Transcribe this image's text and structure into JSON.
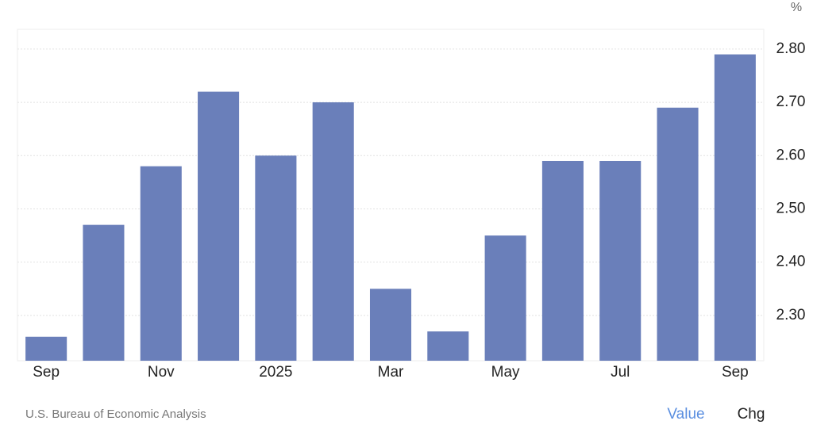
{
  "chart_data": {
    "type": "bar",
    "unit": "%",
    "source": "U.S. Bureau of Economic Analysis",
    "buttons": [
      "Value",
      "Chg"
    ],
    "categories": [
      "Sep",
      null,
      "Nov",
      null,
      "2025",
      null,
      "Mar",
      null,
      "May",
      null,
      "Jul",
      null,
      "Sep"
    ],
    "values": [
      2.26,
      2.47,
      2.58,
      2.72,
      2.6,
      2.7,
      2.35,
      2.27,
      2.45,
      2.59,
      2.59,
      2.69,
      2.79
    ],
    "color": "#6a7fba",
    "ylim": [
      2.215,
      2.837
    ],
    "yticks": [
      {
        "value": 2.3,
        "label": "2.30"
      },
      {
        "value": 2.4,
        "label": "2.40"
      },
      {
        "value": 2.5,
        "label": "2.50"
      },
      {
        "value": 2.6,
        "label": "2.60"
      },
      {
        "value": 2.7,
        "label": "2.70"
      },
      {
        "value": 2.8,
        "label": "2.80"
      }
    ],
    "grid": true
  }
}
